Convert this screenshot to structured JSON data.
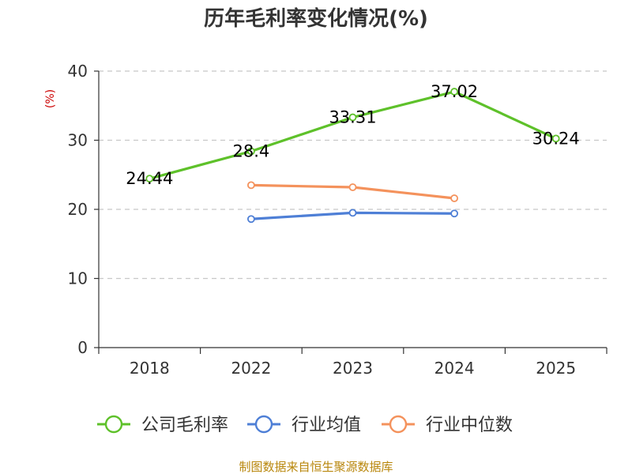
{
  "chart_data": {
    "type": "line",
    "title": "历年毛利率变化情况(%)",
    "ylabel": "(%)",
    "xlabel": "",
    "categories": [
      "2018",
      "2022",
      "2023",
      "2024",
      "2025"
    ],
    "ylim": [
      0,
      40
    ],
    "yticks": [
      0,
      10,
      20,
      30,
      40
    ],
    "grid": true,
    "legend_position": "bottom",
    "series": [
      {
        "name": "公司毛利率",
        "color": "#5ec12a",
        "values": [
          24.44,
          28.4,
          33.31,
          37.02,
          30.24
        ],
        "labels": [
          "24.44",
          "28.4",
          "33.31",
          "37.02",
          "30.24"
        ],
        "show_labels": true
      },
      {
        "name": "行业均值",
        "color": "#4e7fd6",
        "values": [
          null,
          18.6,
          19.5,
          19.4,
          null
        ],
        "show_labels": false
      },
      {
        "name": "行业中位数",
        "color": "#f4925c",
        "values": [
          null,
          23.5,
          23.2,
          21.6,
          null
        ],
        "show_labels": false
      }
    ],
    "source": "制图数据来自恒生聚源数据库"
  }
}
